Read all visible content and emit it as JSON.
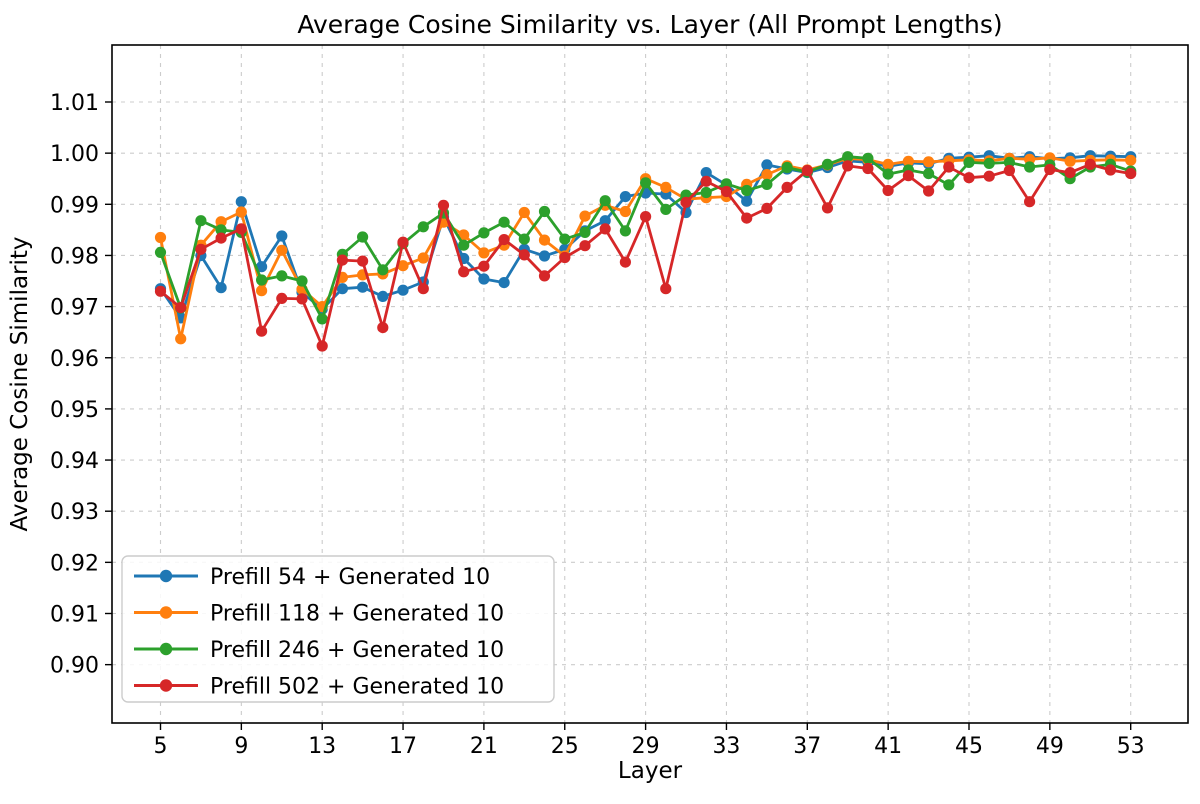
{
  "figure": {
    "title": "Average Cosine Similarity vs. Layer (All Prompt Lengths)",
    "xlabel": "Layer",
    "ylabel": "Average Cosine Similarity"
  },
  "chart_data": {
    "type": "line",
    "title": "Average Cosine Similarity vs. Layer (All Prompt Lengths)",
    "xlabel": "Layer",
    "ylabel": "Average Cosine Similarity",
    "grid": true,
    "grid_style": "dashed",
    "legend_position": "lower left",
    "x_ticks": [
      5,
      9,
      13,
      17,
      21,
      25,
      29,
      33,
      37,
      41,
      45,
      49,
      53
    ],
    "y_ticks": [
      "0.90",
      "0.91",
      "0.92",
      "0.93",
      "0.94",
      "0.95",
      "0.96",
      "0.97",
      "0.98",
      "0.99",
      "1.00",
      "1.01"
    ],
    "y_tick_values": [
      0.9,
      0.91,
      0.92,
      0.93,
      0.94,
      0.95,
      0.96,
      0.97,
      0.98,
      0.99,
      1.0,
      1.01
    ],
    "x": [
      5,
      6,
      7,
      8,
      9,
      10,
      11,
      12,
      13,
      14,
      15,
      16,
      17,
      18,
      19,
      20,
      21,
      22,
      23,
      24,
      25,
      26,
      27,
      28,
      29,
      30,
      31,
      32,
      33,
      34,
      35,
      36,
      37,
      38,
      39,
      40,
      41,
      42,
      43,
      44,
      45,
      46,
      47,
      48,
      49,
      50,
      51,
      52,
      53
    ],
    "series": [
      {
        "name": "Prefill 54 + Generated 10",
        "color": "#1f77b4",
        "values": [
          0.9735,
          0.9678,
          0.98,
          0.9737,
          0.9905,
          0.9778,
          0.9838,
          0.9728,
          0.9695,
          0.9735,
          0.9738,
          0.972,
          0.9732,
          0.9748,
          0.9875,
          0.9794,
          0.9754,
          0.9747,
          0.9812,
          0.9799,
          0.9812,
          0.9848,
          0.9868,
          0.9915,
          0.9922,
          0.992,
          0.9884,
          0.9962,
          0.9938,
          0.9906,
          0.9977,
          0.9969,
          0.9962,
          0.9972,
          0.9985,
          0.9982,
          0.9974,
          0.9981,
          0.9979,
          0.999,
          0.9992,
          0.9995,
          0.999,
          0.9993,
          0.9989,
          0.9991,
          0.9995,
          0.9994,
          0.9993
        ]
      },
      {
        "name": "Prefill 118 + Generated 10",
        "color": "#ff7f0e",
        "values": [
          0.9835,
          0.9637,
          0.982,
          0.9866,
          0.9885,
          0.9731,
          0.981,
          0.9734,
          0.97,
          0.9757,
          0.9762,
          0.9764,
          0.978,
          0.9795,
          0.9865,
          0.984,
          0.9805,
          0.982,
          0.9884,
          0.983,
          0.9799,
          0.9877,
          0.9898,
          0.9886,
          0.995,
          0.9933,
          0.991,
          0.9913,
          0.9915,
          0.9939,
          0.9958,
          0.9975,
          0.9967,
          0.9977,
          0.999,
          0.9987,
          0.9978,
          0.9984,
          0.9983,
          0.9985,
          0.9987,
          0.9985,
          0.999,
          0.9988,
          0.9991,
          0.9984,
          0.9986,
          0.9987,
          0.9986
        ]
      },
      {
        "name": "Prefill 246 + Generated 10",
        "color": "#2ca02c",
        "values": [
          0.9806,
          0.9697,
          0.9868,
          0.985,
          0.9845,
          0.9752,
          0.976,
          0.975,
          0.9676,
          0.9802,
          0.9836,
          0.9772,
          0.9823,
          0.9856,
          0.9883,
          0.982,
          0.9844,
          0.9865,
          0.9832,
          0.9886,
          0.9832,
          0.9845,
          0.9907,
          0.9848,
          0.9942,
          0.989,
          0.9918,
          0.9923,
          0.994,
          0.9927,
          0.9939,
          0.9972,
          0.9963,
          0.9978,
          0.9993,
          0.999,
          0.9959,
          0.9967,
          0.996,
          0.9938,
          0.9982,
          0.998,
          0.9982,
          0.9973,
          0.9977,
          0.995,
          0.9973,
          0.9978,
          0.9965
        ]
      },
      {
        "name": "Prefill 502 + Generated 10",
        "color": "#d62728",
        "values": [
          0.973,
          0.9698,
          0.9812,
          0.9834,
          0.9852,
          0.9652,
          0.9716,
          0.9715,
          0.9623,
          0.9791,
          0.9789,
          0.9659,
          0.9826,
          0.9735,
          0.9898,
          0.9768,
          0.9779,
          0.9831,
          0.9801,
          0.976,
          0.9796,
          0.9819,
          0.9852,
          0.9787,
          0.9876,
          0.9735,
          0.9904,
          0.9945,
          0.9925,
          0.9873,
          0.9892,
          0.9933,
          0.9966,
          0.9893,
          0.9975,
          0.997,
          0.9927,
          0.9956,
          0.9926,
          0.9973,
          0.9952,
          0.9955,
          0.9966,
          0.9905,
          0.9968,
          0.9962,
          0.9978,
          0.9967,
          0.996
        ]
      }
    ],
    "style": {
      "grid_color": "#cccccc",
      "spine_color": "#000000",
      "background": "#ffffff",
      "marker": "circle"
    }
  }
}
